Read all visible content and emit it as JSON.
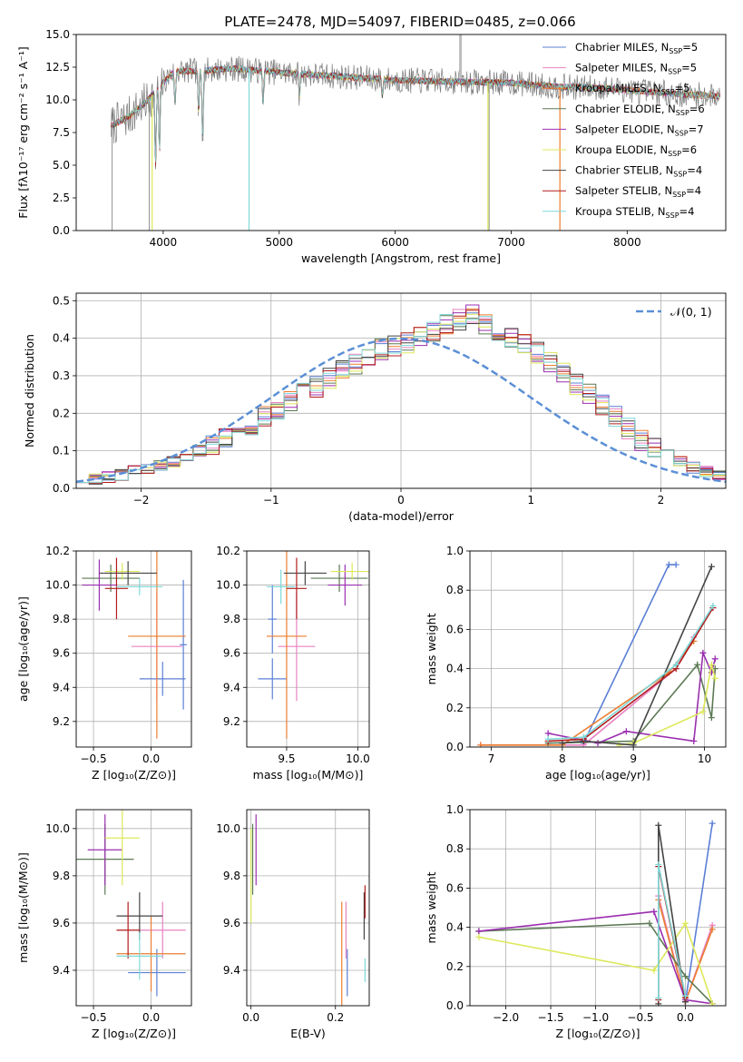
{
  "figure_title": "PLATE=2478, MJD=54097, FIBERID=0485, z=0.066",
  "colors": {
    "Chabrier MILES": "#5b7fd6",
    "Salpeter MILES": "#e882c2",
    "Kroupa MILES": "#ec7d2f",
    "Chabrier ELODIE": "#5c7a55",
    "Salpeter ELODIE": "#9b2fb0",
    "Kroupa ELODIE": "#dde85a",
    "Chabrier STELIB": "#444444",
    "Salpeter STELIB": "#b01c1c",
    "Kroupa STELIB": "#7fd8d8",
    "Data": "#7a7a7a",
    "Gaussian": "#5b8fd6"
  },
  "chart_data": [
    {
      "id": "spectrum",
      "type": "line",
      "xlabel": "wavelength [Angstrom, rest frame]",
      "xlim": [
        3250,
        8850
      ],
      "ylim": [
        0,
        15
      ],
      "xticks": [
        "4000",
        "5000",
        "6000",
        "7000",
        "8000"
      ],
      "xtick_values": [
        4000,
        5000,
        6000,
        7000,
        8000
      ],
      "yticks": [
        "0.0",
        "2.5",
        "5.0",
        "7.5",
        "10.0",
        "12.5",
        "15.0"
      ],
      "ytick_values": [
        0,
        2.5,
        5,
        7.5,
        10,
        12.5,
        15
      ],
      "grid": false,
      "legend": "top-right",
      "legend_entries": [
        {
          "label": "Chabrier MILES, N",
          "sub": "SSP",
          "suffix": "=5",
          "model": "Chabrier MILES"
        },
        {
          "label": "Salpeter MILES, N",
          "sub": "SSP",
          "suffix": "=5",
          "model": "Salpeter MILES"
        },
        {
          "label": "Kroupa MILES, N",
          "sub": "SSP",
          "suffix": "=5",
          "model": "Kroupa MILES"
        },
        {
          "label": "Chabrier ELODIE, N",
          "sub": "SSP",
          "suffix": "=6",
          "model": "Chabrier ELODIE"
        },
        {
          "label": "Salpeter ELODIE, N",
          "sub": "SSP",
          "suffix": "=7",
          "model": "Salpeter ELODIE"
        },
        {
          "label": "Kroupa ELODIE, N",
          "sub": "SSP",
          "suffix": "=6",
          "model": "Kroupa ELODIE"
        },
        {
          "label": "Chabrier STELIB, N",
          "sub": "SSP",
          "suffix": "=4",
          "model": "Chabrier STELIB"
        },
        {
          "label": "Salpeter STELIB, N",
          "sub": "SSP",
          "suffix": "=4",
          "model": "Salpeter STELIB"
        },
        {
          "label": "Kroupa STELIB, N",
          "sub": "SSP",
          "suffix": "=4",
          "model": "Kroupa STELIB"
        }
      ],
      "continuum": {
        "x": [
          3550,
          3700,
          3850,
          3950,
          4100,
          4300,
          4600,
          5000,
          5500,
          6000,
          6500,
          7000,
          7400,
          7800,
          8200,
          8500,
          8800
        ],
        "y": [
          8.0,
          8.7,
          9.8,
          10.9,
          12.2,
          12.2,
          12.4,
          12.1,
          11.8,
          11.5,
          11.4,
          11.3,
          11.0,
          10.9,
          10.6,
          10.4,
          10.3
        ]
      },
      "absorption_lines": [
        {
          "x": 3934,
          "y": 5.0
        },
        {
          "x": 3968,
          "y": 6.0
        },
        {
          "x": 4102,
          "y": 9.5
        },
        {
          "x": 4305,
          "y": 9.0
        },
        {
          "x": 4340,
          "y": 7.0
        },
        {
          "x": 4861,
          "y": 9.8
        },
        {
          "x": 5175,
          "y": 10.2
        },
        {
          "x": 5890,
          "y": 10.3
        }
      ],
      "model_spikes": [
        {
          "model": "Kroupa STELIB",
          "x": 4740,
          "y": 0
        },
        {
          "model": "Kroupa ELODIE",
          "x": 3905,
          "y": 0
        },
        {
          "model": "Kroupa ELODIE",
          "x": 6800,
          "y": 0
        },
        {
          "model": "Kroupa MILES",
          "x": 7420,
          "y": 0
        }
      ],
      "data_gaps": [
        {
          "x": 3560,
          "y": 0
        },
        {
          "x": 3880,
          "y": 0
        },
        {
          "x": 6810,
          "y": 0
        }
      ],
      "data_emission": [
        {
          "x": 6563,
          "y": 15
        }
      ]
    },
    {
      "id": "residuals",
      "type": "bar",
      "xlabel": "(data-model)/error",
      "ylabel": "Normed distribution",
      "xlim": [
        -2.5,
        2.5
      ],
      "ylim": [
        0,
        0.52
      ],
      "xticks": [
        "−2",
        "−1",
        "0",
        "1",
        "2"
      ],
      "xtick_values": [
        -2,
        -1,
        0,
        1,
        2
      ],
      "yticks": [
        "0.0",
        "0.1",
        "0.2",
        "0.3",
        "0.4",
        "0.5"
      ],
      "ytick_values": [
        0,
        0.1,
        0.2,
        0.3,
        0.4,
        0.5
      ],
      "grid": true,
      "legend": "top-right",
      "legend_label": "𝒩(0, 1)",
      "bin_width": 0.1,
      "bin_start": -2.5,
      "histogram_base": [
        0.02,
        0.025,
        0.03,
        0.035,
        0.045,
        0.05,
        0.06,
        0.07,
        0.085,
        0.1,
        0.115,
        0.13,
        0.15,
        0.17,
        0.19,
        0.21,
        0.23,
        0.25,
        0.27,
        0.29,
        0.31,
        0.33,
        0.35,
        0.37,
        0.38,
        0.39,
        0.4,
        0.42,
        0.44,
        0.45,
        0.46,
        0.44,
        0.42,
        0.4,
        0.38,
        0.36,
        0.34,
        0.31,
        0.28,
        0.25,
        0.22,
        0.19,
        0.16,
        0.13,
        0.11,
        0.09,
        0.07,
        0.055,
        0.045,
        0.035
      ]
    },
    {
      "id": "age_vs_Z",
      "type": "scatter",
      "xlabel": "Z [log₁₀(Z/Z⊙)]",
      "ylabel": "age  [log₁₀(age/yr)]",
      "xlim": [
        -0.65,
        0.35
      ],
      "ylim": [
        9.05,
        10.2
      ],
      "xticks": [
        "−0.5",
        "0.0"
      ],
      "xtick_values": [
        -0.5,
        0
      ],
      "yticks": [
        "9.2",
        "9.4",
        "9.6",
        "9.8",
        "10.0",
        "10.2"
      ],
      "ytick_values": [
        9.2,
        9.4,
        9.6,
        9.8,
        10,
        10.2
      ],
      "grid": true,
      "points": [
        {
          "model": "Chabrier MILES",
          "x": 0.1,
          "y": 9.45,
          "xerr": 0.2,
          "yerr": 0.1
        },
        {
          "model": "Chabrier MILES",
          "x": 0.28,
          "y": 9.65,
          "xerr": 0.03,
          "yerr": 0.38
        },
        {
          "model": "Salpeter MILES",
          "x": 0.05,
          "y": 9.64,
          "xerr": 0.22,
          "yerr": 0.32
        },
        {
          "model": "Kroupa MILES",
          "x": 0.05,
          "y": 9.7,
          "xerr": 0.25,
          "yerr": 0.6
        },
        {
          "model": "Chabrier ELODIE",
          "x": -0.35,
          "y": 10.04,
          "xerr": 0.25,
          "yerr": 0.08
        },
        {
          "model": "Salpeter ELODIE",
          "x": -0.45,
          "y": 10.0,
          "xerr": 0.15,
          "yerr": 0.15
        },
        {
          "model": "Kroupa ELODIE",
          "x": -0.25,
          "y": 10.08,
          "xerr": 0.15,
          "yerr": 0.05
        },
        {
          "model": "Chabrier STELIB",
          "x": -0.2,
          "y": 10.07,
          "xerr": 0.25,
          "yerr": 0.07
        },
        {
          "model": "Salpeter STELIB",
          "x": -0.3,
          "y": 9.98,
          "xerr": 0.1,
          "yerr": 0.18
        },
        {
          "model": "Kroupa STELIB",
          "x": -0.1,
          "y": 9.99,
          "xerr": 0.2,
          "yerr": 0.05
        }
      ]
    },
    {
      "id": "age_vs_mass",
      "type": "scatter",
      "xlabel": "mass [log₁₀(M/M⊙)]",
      "xlim": [
        9.22,
        10.08
      ],
      "ylim": [
        9.05,
        10.2
      ],
      "xticks": [
        "9.5",
        "10.0"
      ],
      "xtick_values": [
        9.5,
        10
      ],
      "yticks": [
        "9.2",
        "9.4",
        "9.6",
        "9.8",
        "10.0",
        "10.2"
      ],
      "ytick_values": [
        9.2,
        9.4,
        9.6,
        9.8,
        10,
        10.2
      ],
      "grid": true,
      "points": [
        {
          "model": "Chabrier MILES",
          "x": 9.4,
          "y": 9.45,
          "xerr": 0.1,
          "yerr": 0.12
        },
        {
          "model": "Chabrier MILES",
          "x": 9.4,
          "y": 9.8,
          "xerr": 0.03,
          "yerr": 0.2
        },
        {
          "model": "Salpeter MILES",
          "x": 9.57,
          "y": 9.64,
          "xerr": 0.13,
          "yerr": 0.32
        },
        {
          "model": "Kroupa MILES",
          "x": 9.5,
          "y": 9.7,
          "xerr": 0.14,
          "yerr": 0.6
        },
        {
          "model": "Chabrier ELODIE",
          "x": 9.87,
          "y": 10.04,
          "xerr": 0.2,
          "yerr": 0.08
        },
        {
          "model": "Salpeter ELODIE",
          "x": 9.91,
          "y": 10.0,
          "xerr": 0.12,
          "yerr": 0.12
        },
        {
          "model": "Kroupa ELODIE",
          "x": 9.96,
          "y": 10.08,
          "xerr": 0.15,
          "yerr": 0.05
        },
        {
          "model": "Chabrier STELIB",
          "x": 9.63,
          "y": 10.07,
          "xerr": 0.15,
          "yerr": 0.07
        },
        {
          "model": "Salpeter STELIB",
          "x": 9.57,
          "y": 9.98,
          "xerr": 0.07,
          "yerr": 0.18
        },
        {
          "model": "Kroupa STELIB",
          "x": 9.46,
          "y": 9.99,
          "xerr": 0.1,
          "yerr": 0.1
        }
      ]
    },
    {
      "id": "weight_vs_age",
      "type": "line",
      "xlabel": "age  [log₁₀(age/yr)]",
      "ylabel": "mass weight",
      "xlim": [
        6.7,
        10.3
      ],
      "ylim": [
        0,
        1.0
      ],
      "xticks": [
        "7",
        "8",
        "9",
        "10"
      ],
      "xtick_values": [
        7,
        8,
        9,
        10
      ],
      "yticks": [
        "0.0",
        "0.2",
        "0.4",
        "0.6",
        "0.8",
        "1.0"
      ],
      "ytick_values": [
        0,
        0.2,
        0.4,
        0.6,
        0.8,
        1.0
      ],
      "grid": true,
      "series": [
        {
          "model": "Chabrier MILES",
          "x": [
            8.3,
            9.5,
            9.6
          ],
          "y": [
            0.02,
            0.93,
            0.93
          ]
        },
        {
          "model": "Salpeter MILES",
          "x": [
            6.85,
            8.3,
            9.6,
            9.85
          ],
          "y": [
            0.01,
            0.01,
            0.4,
            0.56
          ]
        },
        {
          "model": "Kroupa MILES",
          "x": [
            6.85,
            8.0,
            9.5,
            9.85
          ],
          "y": [
            0.01,
            0.01,
            0.38,
            0.54
          ]
        },
        {
          "model": "Chabrier ELODIE",
          "x": [
            7.8,
            9.0,
            9.9,
            10.1,
            10.15
          ],
          "y": [
            0.02,
            0.03,
            0.42,
            0.15,
            0.4
          ]
        },
        {
          "model": "Salpeter ELODIE",
          "x": [
            7.8,
            8.5,
            8.9,
            9.85,
            9.98,
            10.1,
            10.15
          ],
          "y": [
            0.07,
            0.02,
            0.08,
            0.03,
            0.48,
            0.38,
            0.45
          ]
        },
        {
          "model": "Kroupa ELODIE",
          "x": [
            8.8,
            9.0,
            9.98,
            10.1,
            10.15
          ],
          "y": [
            0.01,
            0.02,
            0.18,
            0.42,
            0.35
          ]
        },
        {
          "model": "Chabrier STELIB",
          "x": [
            8.0,
            8.3,
            9.0,
            10.1
          ],
          "y": [
            0.02,
            0.03,
            0.01,
            0.92
          ]
        },
        {
          "model": "Salpeter STELIB",
          "x": [
            7.8,
            8.3,
            9.6,
            10.12
          ],
          "y": [
            0.03,
            0.04,
            0.4,
            0.71
          ]
        },
        {
          "model": "Kroupa STELIB",
          "x": [
            7.8,
            8.3,
            9.6,
            10.12
          ],
          "y": [
            0.04,
            0.05,
            0.42,
            0.72
          ]
        }
      ]
    },
    {
      "id": "mass_vs_Z",
      "type": "scatter",
      "xlabel": "Z [log₁₀(Z/Z⊙)]",
      "ylabel": "mass [log₁₀(M/M⊙)]",
      "xlim": [
        -0.65,
        0.35
      ],
      "ylim": [
        9.25,
        10.08
      ],
      "xticks": [
        "−0.5",
        "0.0"
      ],
      "xtick_values": [
        -0.5,
        0
      ],
      "yticks": [
        "9.4",
        "9.6",
        "9.8",
        "10.0"
      ],
      "ytick_values": [
        9.4,
        9.6,
        9.8,
        10
      ],
      "grid": true,
      "points": [
        {
          "model": "Chabrier MILES",
          "x": 0.05,
          "y": 9.39,
          "xerr": 0.25,
          "yerr": 0.1
        },
        {
          "model": "Salpeter MILES",
          "x": 0.1,
          "y": 9.57,
          "xerr": 0.2,
          "yerr": 0.12
        },
        {
          "model": "Kroupa MILES",
          "x": 0.0,
          "y": 9.47,
          "xerr": 0.3,
          "yerr": 0.16
        },
        {
          "model": "Chabrier ELODIE",
          "x": -0.4,
          "y": 9.87,
          "xerr": 0.25,
          "yerr": 0.15
        },
        {
          "model": "Salpeter ELODIE",
          "x": -0.4,
          "y": 9.91,
          "xerr": 0.15,
          "yerr": 0.15
        },
        {
          "model": "Kroupa ELODIE",
          "x": -0.25,
          "y": 9.96,
          "xerr": 0.15,
          "yerr": 0.2
        },
        {
          "model": "Chabrier STELIB",
          "x": -0.1,
          "y": 9.63,
          "xerr": 0.2,
          "yerr": 0.1
        },
        {
          "model": "Salpeter STELIB",
          "x": -0.2,
          "y": 9.57,
          "xerr": 0.1,
          "yerr": 0.12
        },
        {
          "model": "Kroupa STELIB",
          "x": -0.1,
          "y": 9.46,
          "xerr": 0.2,
          "yerr": 0.1
        }
      ]
    },
    {
      "id": "mass_vs_ebv",
      "type": "scatter",
      "xlabel": "E(B-V)",
      "xlim": [
        -0.01,
        0.28
      ],
      "ylim": [
        9.25,
        10.08
      ],
      "xticks": [
        "0.0",
        "0.2"
      ],
      "xtick_values": [
        0,
        0.2
      ],
      "yticks": [
        "9.4",
        "9.6",
        "9.8",
        "10.0"
      ],
      "ytick_values": [
        9.4,
        9.6,
        9.8,
        10
      ],
      "grid": true,
      "points": [
        {
          "model": "Chabrier MILES",
          "x": 0.228,
          "y": 9.39,
          "xerr": 0,
          "yerr": 0.1
        },
        {
          "model": "Salpeter MILES",
          "x": 0.225,
          "y": 9.57,
          "xerr": 0,
          "yerr": 0.12
        },
        {
          "model": "Kroupa MILES",
          "x": 0.215,
          "y": 9.47,
          "xerr": 0,
          "yerr": 0.22
        },
        {
          "model": "Chabrier ELODIE",
          "x": 0.004,
          "y": 9.87,
          "xerr": 0,
          "yerr": 0.15
        },
        {
          "model": "Salpeter ELODIE",
          "x": 0.012,
          "y": 9.91,
          "xerr": 0,
          "yerr": 0.15
        },
        {
          "model": "Kroupa ELODIE",
          "x": 0.0,
          "y": 9.8,
          "xerr": 0,
          "yerr": 0.2
        },
        {
          "model": "Chabrier STELIB",
          "x": 0.268,
          "y": 9.63,
          "xerr": 0,
          "yerr": 0.1
        },
        {
          "model": "Salpeter STELIB",
          "x": 0.27,
          "y": 9.69,
          "xerr": 0,
          "yerr": 0.07
        },
        {
          "model": "Kroupa STELIB",
          "x": 0.27,
          "y": 9.4,
          "xerr": 0,
          "yerr": 0.05
        }
      ]
    },
    {
      "id": "weight_vs_Z",
      "type": "line",
      "xlabel": "Z [log₁₀(Z/Z⊙)]",
      "ylabel": "mass weight",
      "xlim": [
        -2.4,
        0.45
      ],
      "ylim": [
        0,
        1.0
      ],
      "xticks": [
        "−2.0",
        "−1.5",
        "−1.0",
        "−0.5",
        "0.0"
      ],
      "xtick_values": [
        -2,
        -1.5,
        -1,
        -0.5,
        0
      ],
      "yticks": [
        "0.0",
        "0.2",
        "0.4",
        "0.6",
        "0.8",
        "1.0"
      ],
      "ytick_values": [
        0,
        0.2,
        0.4,
        0.6,
        0.8,
        1.0
      ],
      "grid": true,
      "series": [
        {
          "model": "Chabrier MILES",
          "x": [
            0.0,
            0.3
          ],
          "y": [
            0.02,
            0.93
          ]
        },
        {
          "model": "Salpeter MILES",
          "x": [
            -0.3,
            0.0,
            0.3
          ],
          "y": [
            0.56,
            0.02,
            0.41
          ]
        },
        {
          "model": "Kroupa MILES",
          "x": [
            -0.3,
            0.0,
            0.3
          ],
          "y": [
            0.54,
            0.02,
            0.39
          ]
        },
        {
          "model": "Chabrier ELODIE",
          "x": [
            -2.3,
            -0.4,
            0.0,
            0.3
          ],
          "y": [
            0.38,
            0.42,
            0.15,
            0.01
          ]
        },
        {
          "model": "Salpeter ELODIE",
          "x": [
            -2.3,
            -0.35,
            0.0,
            0.3
          ],
          "y": [
            0.38,
            0.48,
            0.03,
            0.01
          ]
        },
        {
          "model": "Kroupa ELODIE",
          "x": [
            -2.3,
            -0.35,
            0.0,
            0.3
          ],
          "y": [
            0.35,
            0.18,
            0.42,
            0.01
          ]
        },
        {
          "model": "Chabrier STELIB",
          "x": [
            -0.3,
            -0.3,
            0.0
          ],
          "y": [
            0.01,
            0.92,
            0.02
          ]
        },
        {
          "model": "Salpeter STELIB",
          "x": [
            -0.3,
            -0.3,
            0.0
          ],
          "y": [
            0.03,
            0.71,
            0.04
          ]
        },
        {
          "model": "Kroupa STELIB",
          "x": [
            -0.3,
            -0.3,
            0.0
          ],
          "y": [
            0.04,
            0.72,
            0.05
          ]
        }
      ]
    }
  ]
}
